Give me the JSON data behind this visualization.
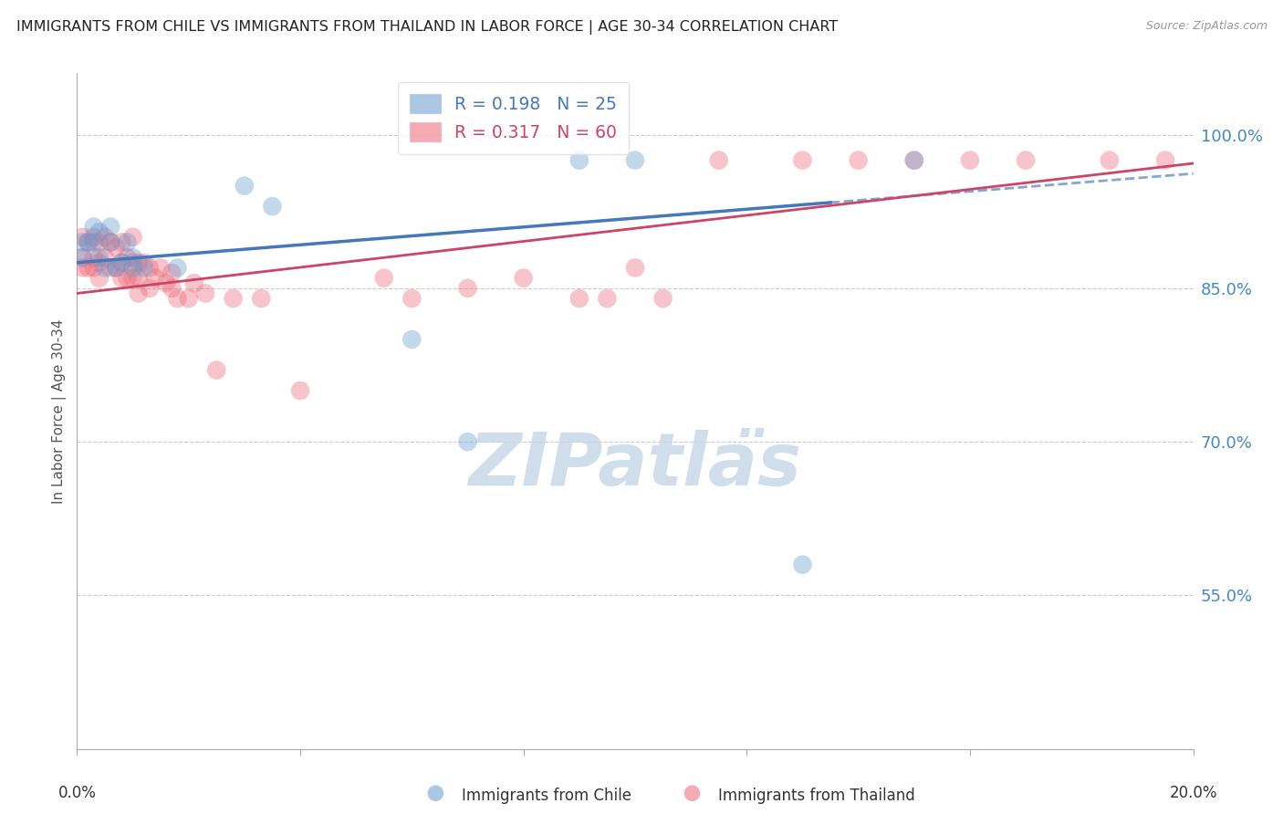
{
  "title": "IMMIGRANTS FROM CHILE VS IMMIGRANTS FROM THAILAND IN LABOR FORCE | AGE 30-34 CORRELATION CHART",
  "source": "Source: ZipAtlas.com",
  "ylabel": "In Labor Force | Age 30-34",
  "ytick_labels": [
    "100.0%",
    "85.0%",
    "70.0%",
    "55.0%"
  ],
  "ytick_values": [
    1.0,
    0.85,
    0.7,
    0.55
  ],
  "xlim": [
    0.0,
    0.2
  ],
  "ylim": [
    0.4,
    1.06
  ],
  "chile_R": 0.198,
  "chile_N": 25,
  "thailand_R": 0.317,
  "thailand_N": 60,
  "chile_color": "#6699cc",
  "thailand_color": "#ee6677",
  "chile_line_color": "#4477bb",
  "thailand_line_color": "#cc4466",
  "background_color": "#ffffff",
  "grid_color": "#cccccc",
  "watermark_color": "#c8d8e8",
  "right_axis_color": "#4488cc",
  "chile_points_x": [
    0.001,
    0.001,
    0.002,
    0.003,
    0.003,
    0.004,
    0.004,
    0.005,
    0.006,
    0.006,
    0.007,
    0.008,
    0.009,
    0.01,
    0.01,
    0.012,
    0.018,
    0.03,
    0.035,
    0.06,
    0.07,
    0.09,
    0.1,
    0.13,
    0.15
  ],
  "chile_points_y": [
    0.895,
    0.88,
    0.895,
    0.895,
    0.91,
    0.905,
    0.88,
    0.87,
    0.895,
    0.91,
    0.87,
    0.875,
    0.895,
    0.88,
    0.87,
    0.87,
    0.87,
    0.95,
    0.93,
    0.8,
    0.7,
    0.975,
    0.975,
    0.58,
    0.975
  ],
  "thailand_points_x": [
    0.001,
    0.001,
    0.001,
    0.002,
    0.002,
    0.003,
    0.003,
    0.003,
    0.004,
    0.004,
    0.004,
    0.005,
    0.005,
    0.006,
    0.006,
    0.007,
    0.007,
    0.008,
    0.008,
    0.008,
    0.009,
    0.009,
    0.01,
    0.01,
    0.01,
    0.011,
    0.011,
    0.011,
    0.012,
    0.013,
    0.013,
    0.014,
    0.015,
    0.016,
    0.017,
    0.017,
    0.018,
    0.02,
    0.021,
    0.023,
    0.025,
    0.028,
    0.033,
    0.04,
    0.055,
    0.06,
    0.07,
    0.08,
    0.09,
    0.095,
    0.1,
    0.105,
    0.115,
    0.13,
    0.14,
    0.15,
    0.16,
    0.17,
    0.185,
    0.195
  ],
  "thailand_points_y": [
    0.9,
    0.88,
    0.87,
    0.895,
    0.87,
    0.9,
    0.88,
    0.87,
    0.895,
    0.875,
    0.86,
    0.9,
    0.88,
    0.895,
    0.87,
    0.89,
    0.87,
    0.895,
    0.875,
    0.86,
    0.88,
    0.86,
    0.9,
    0.875,
    0.86,
    0.875,
    0.86,
    0.845,
    0.875,
    0.87,
    0.85,
    0.86,
    0.87,
    0.855,
    0.865,
    0.85,
    0.84,
    0.84,
    0.855,
    0.845,
    0.77,
    0.84,
    0.84,
    0.75,
    0.86,
    0.84,
    0.85,
    0.86,
    0.84,
    0.84,
    0.87,
    0.84,
    0.975,
    0.975,
    0.975,
    0.975,
    0.975,
    0.975,
    0.975,
    0.975
  ],
  "chile_line_x0": 0.0,
  "chile_line_y0": 0.875,
  "chile_line_x1": 0.2,
  "chile_line_y1": 0.962,
  "chile_line_solid_x1": 0.135,
  "chile_line_dashed_x0": 0.135,
  "thailand_line_x0": 0.0,
  "thailand_line_y0": 0.845,
  "thailand_line_x1": 0.2,
  "thailand_line_y1": 0.972
}
